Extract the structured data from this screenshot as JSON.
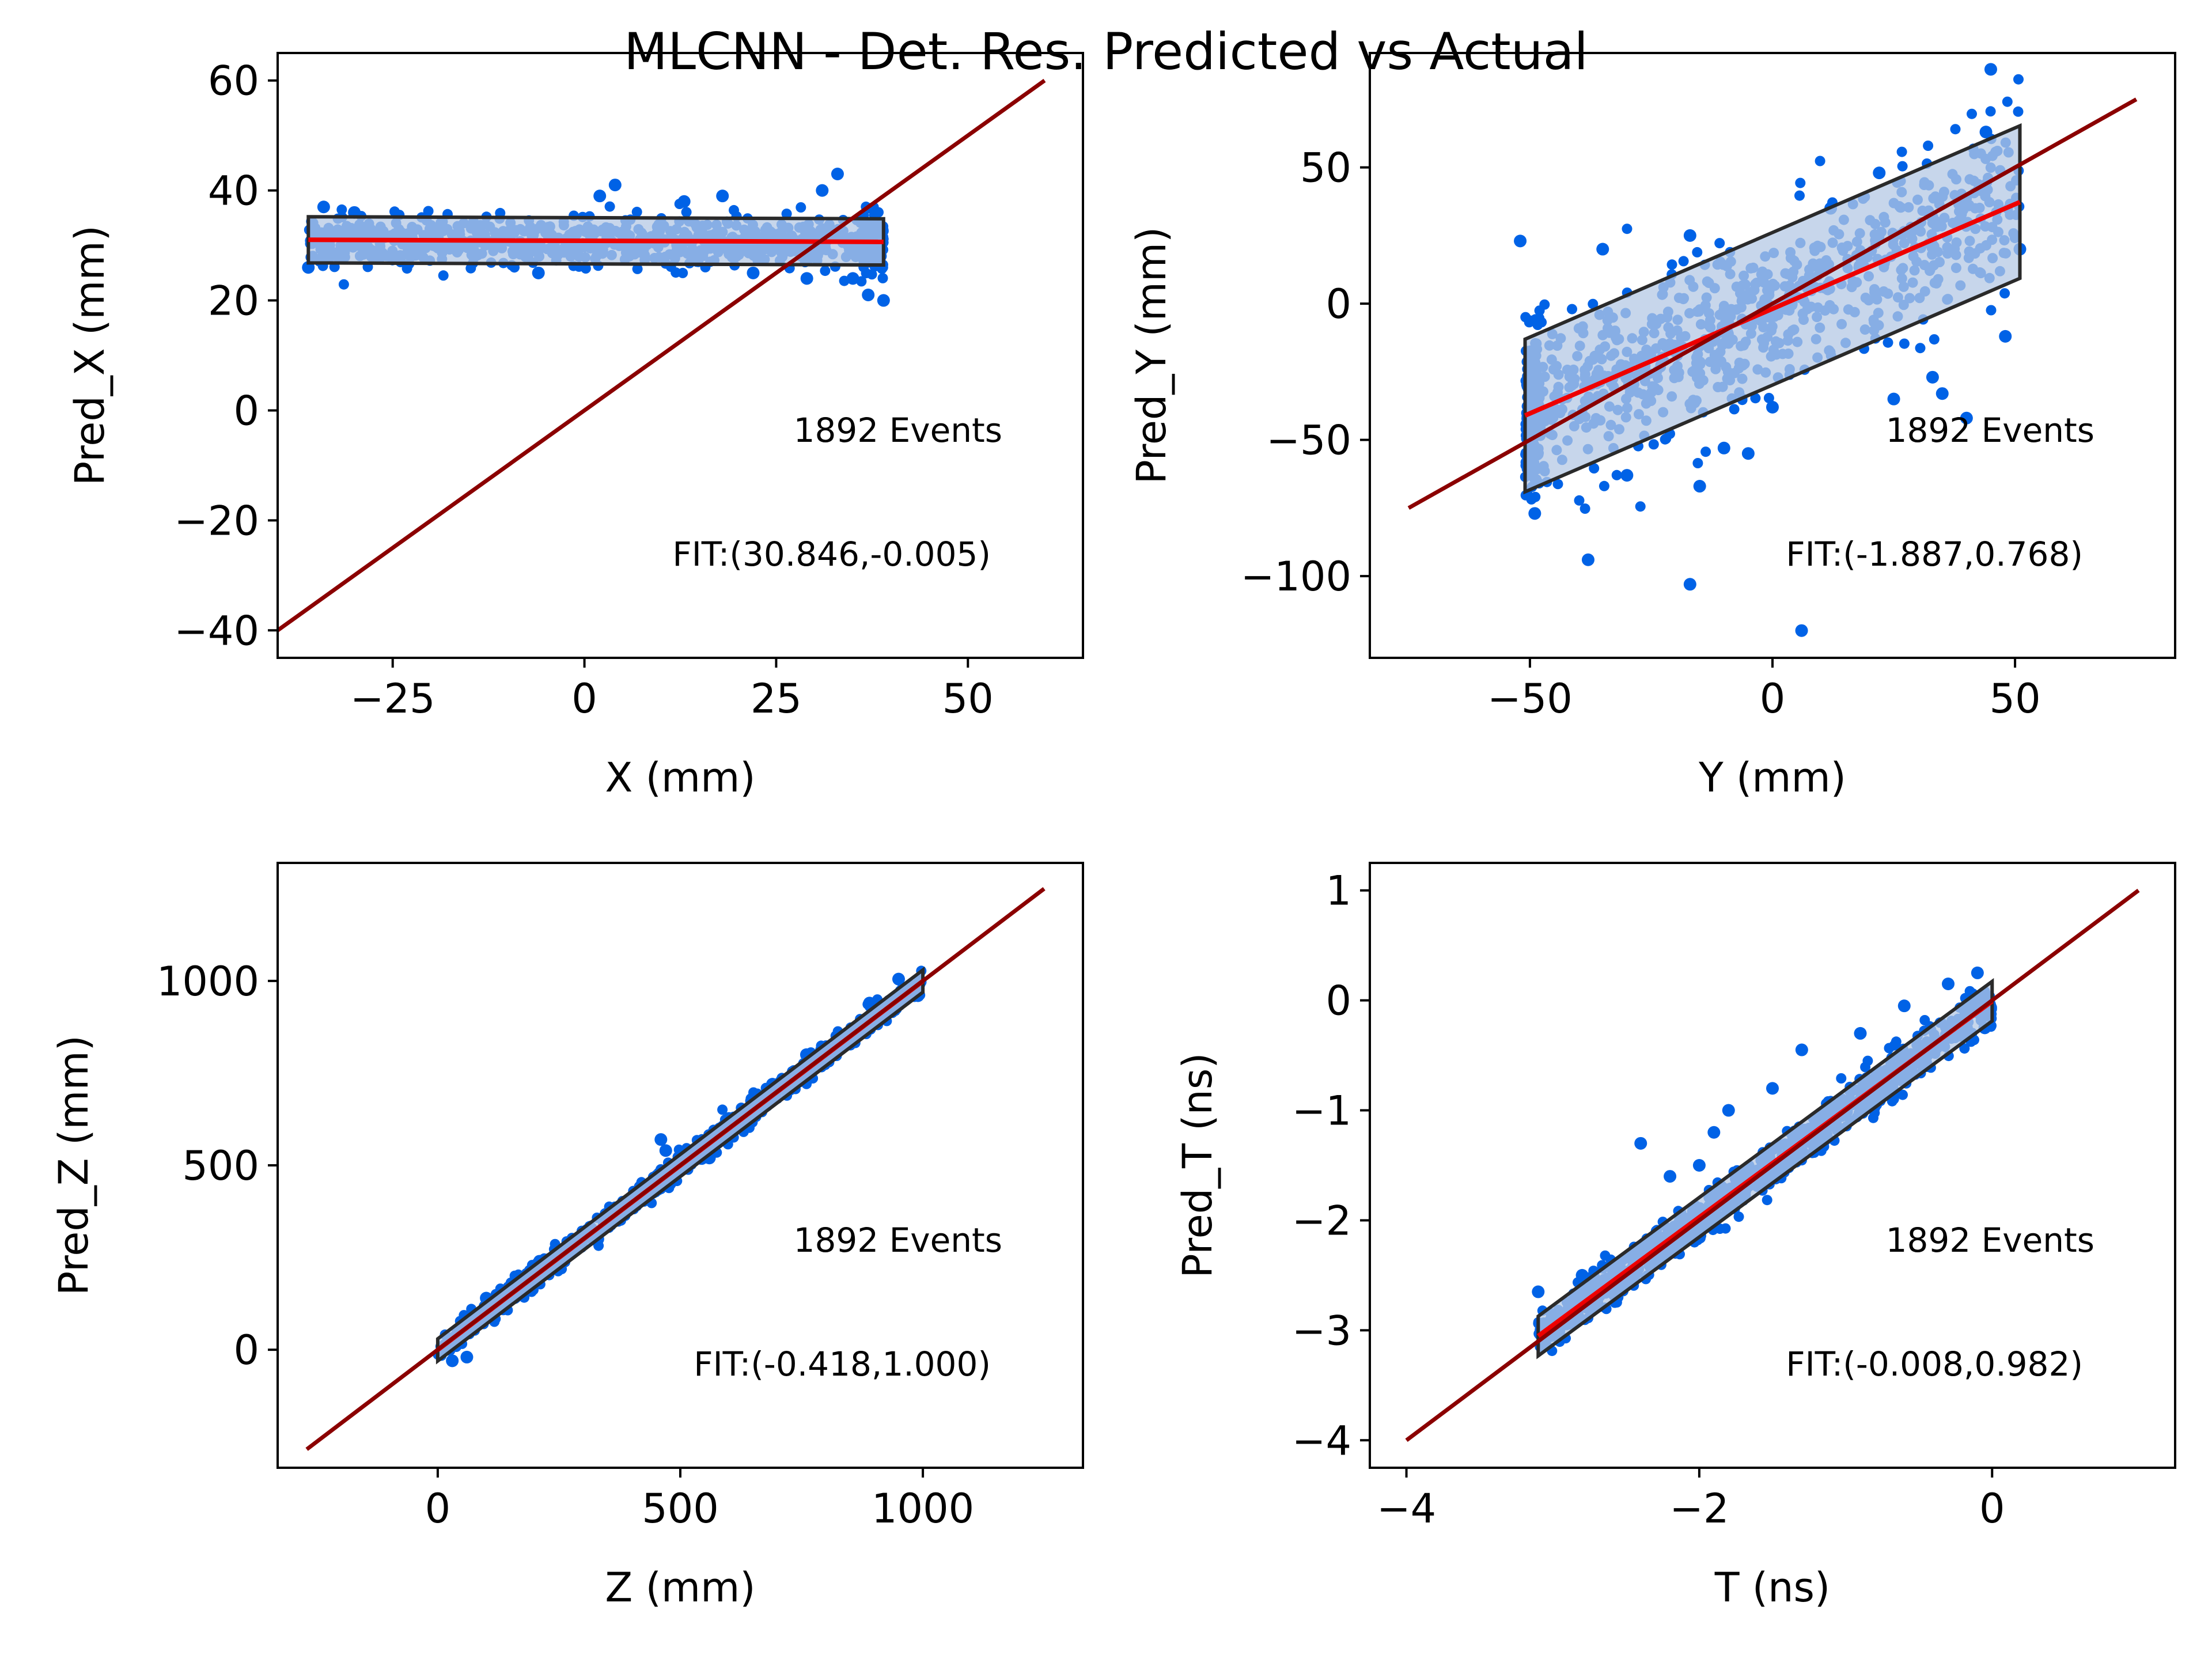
{
  "figure": {
    "title": "MLCNN - Det. Res. Predicted vs Actual"
  },
  "colors": {
    "points": "#0062e6",
    "band_fill": "#b4c8e4",
    "band_edge": "#2a2a2a",
    "fit_line": "#ee0000",
    "identity_line": "#8b0000"
  },
  "chart_data": [
    {
      "type": "scatter",
      "xlabel": "X (mm)",
      "ylabel": "Pred_X (mm)",
      "xlim": [
        -40,
        65
      ],
      "ylim": [
        -45,
        65
      ],
      "xticks": [
        -25,
        0,
        25,
        50
      ],
      "yticks": [
        -40,
        -20,
        0,
        20,
        40,
        60
      ],
      "x_range": [
        -36,
        39
      ],
      "identity": [
        -40,
        60
      ],
      "fit": {
        "intercept": 30.846,
        "slope": -0.005
      },
      "band_halfwidth": 4.2,
      "events_label": "1892 Events",
      "fit_label": "FIT:(30.846,-0.005)",
      "events": 1892,
      "outliers": [
        [
          -36,
          26
        ],
        [
          -34,
          37
        ],
        [
          -30,
          36
        ],
        [
          -24,
          28
        ],
        [
          -6,
          25
        ],
        [
          2,
          39
        ],
        [
          4,
          41
        ],
        [
          13,
          38
        ],
        [
          18,
          39
        ],
        [
          22,
          25
        ],
        [
          29,
          24
        ],
        [
          31,
          40
        ],
        [
          33,
          43
        ],
        [
          35,
          24
        ],
        [
          37,
          21
        ],
        [
          39,
          20
        ]
      ]
    },
    {
      "type": "scatter",
      "xlabel": "Y (mm)",
      "ylabel": "Pred_Y (mm)",
      "xlim": [
        -83,
        83
      ],
      "ylim": [
        -130,
        92
      ],
      "xticks": [
        -50,
        0,
        50
      ],
      "yticks": [
        -100,
        -50,
        0,
        50
      ],
      "x_range": [
        -51,
        51
      ],
      "identity": [
        -75,
        75
      ],
      "fit": {
        "intercept": -1.887,
        "slope": 0.768
      },
      "band_halfwidth": 28,
      "events_label": "1892 Events",
      "fit_label": "FIT:(-1.887,0.768)",
      "events": 1892,
      "outliers": [
        [
          -52,
          23
        ],
        [
          -49,
          -77
        ],
        [
          -38,
          -94
        ],
        [
          -35,
          20
        ],
        [
          -30,
          -63
        ],
        [
          -17,
          -103
        ],
        [
          -17,
          25
        ],
        [
          -15,
          -67
        ],
        [
          -10,
          -53
        ],
        [
          -5,
          -55
        ],
        [
          0,
          -38
        ],
        [
          6,
          -120
        ],
        [
          12,
          35
        ],
        [
          22,
          48
        ],
        [
          25,
          -35
        ],
        [
          33,
          -27
        ],
        [
          35,
          -33
        ],
        [
          40,
          -42
        ],
        [
          44,
          63
        ],
        [
          45,
          86
        ],
        [
          48,
          -12
        ],
        [
          51,
          20
        ]
      ]
    },
    {
      "type": "scatter",
      "xlabel": "Z (mm)",
      "ylabel": "Pred_Z (mm)",
      "xlim": [
        -330,
        1330
      ],
      "ylim": [
        -320,
        1320
      ],
      "xticks": [
        0,
        500,
        1000
      ],
      "yticks": [
        0,
        500,
        1000
      ],
      "x_range": [
        0,
        1000
      ],
      "identity": [
        -270,
        1250
      ],
      "fit": {
        "intercept": -0.418,
        "slope": 1.0
      },
      "band_halfwidth": 30,
      "events_label": "1892 Events",
      "fit_label": "FIT:(-0.418,1.000)",
      "events": 1892,
      "outliers": [
        [
          30,
          -30
        ],
        [
          60,
          -20
        ],
        [
          100,
          140
        ],
        [
          210,
          240
        ],
        [
          330,
          300
        ],
        [
          460,
          570
        ],
        [
          470,
          540
        ],
        [
          560,
          520
        ],
        [
          690,
          720
        ],
        [
          760,
          800
        ],
        [
          890,
          940
        ],
        [
          950,
          1005
        ],
        [
          990,
          960
        ]
      ]
    },
    {
      "type": "scatter",
      "xlabel": "T (ns)",
      "ylabel": "Pred_T (ns)",
      "xlim": [
        -4.25,
        1.25
      ],
      "ylim": [
        -4.25,
        1.25
      ],
      "xticks": [
        -4,
        -2,
        0
      ],
      "yticks": [
        -4,
        -3,
        -2,
        -1,
        0,
        1
      ],
      "x_range": [
        -3.1,
        0
      ],
      "identity": [
        -4,
        1
      ],
      "fit": {
        "intercept": -0.008,
        "slope": 0.982
      },
      "band_halfwidth": 0.18,
      "events_label": "1892 Events",
      "fit_label": "FIT:(-0.008,0.982)",
      "events": 1892,
      "outliers": [
        [
          -3.1,
          -2.65
        ],
        [
          -2.8,
          -2.5
        ],
        [
          -2.4,
          -1.3
        ],
        [
          -2.2,
          -1.6
        ],
        [
          -2.0,
          -1.5
        ],
        [
          -1.9,
          -1.2
        ],
        [
          -1.8,
          -1.0
        ],
        [
          -1.5,
          -0.8
        ],
        [
          -1.3,
          -0.45
        ],
        [
          -0.9,
          -0.3
        ],
        [
          -0.6,
          -0.05
        ],
        [
          -0.3,
          0.15
        ],
        [
          -0.1,
          0.25
        ],
        [
          -0.05,
          -0.25
        ],
        [
          -1.2,
          -1.25
        ],
        [
          -2.5,
          -2.55
        ]
      ]
    }
  ]
}
